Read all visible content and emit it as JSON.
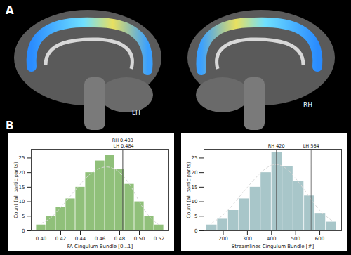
{
  "figure": {
    "panel_a": {
      "label": "A",
      "hemispheres": [
        "LH",
        "RH"
      ]
    },
    "panel_b": {
      "label": "B"
    }
  },
  "chart_data": [
    {
      "type": "histogram",
      "x_label": "FA Cingulum Bundle [0...1]",
      "y_label": "Count (all participants)",
      "bins": [
        0.395,
        0.405,
        0.415,
        0.425,
        0.435,
        0.445,
        0.455,
        0.465,
        0.475,
        0.485,
        0.495,
        0.505,
        0.515,
        0.525
      ],
      "values": [
        2,
        5,
        8,
        11,
        15,
        20,
        24,
        26,
        21,
        16,
        10,
        5,
        2
      ],
      "color": "#90c07a",
      "density_curve": {
        "x": [
          0.4,
          0.41,
          0.42,
          0.43,
          0.44,
          0.45,
          0.46,
          0.47,
          0.48,
          0.49,
          0.5,
          0.51,
          0.52
        ],
        "values": [
          2.5,
          4.5,
          8,
          12,
          16,
          19.5,
          21.5,
          21.8,
          20,
          16,
          10,
          5,
          2
        ],
        "line_style": "dashed"
      },
      "annotations": [
        {
          "x": 0.483,
          "label": "RH 0.483"
        },
        {
          "x": 0.484,
          "label": "LH 0.484"
        }
      ],
      "xlim": [
        0.39,
        0.53
      ],
      "xticks": [
        {
          "value": 0.4,
          "label": "0.40"
        },
        0.42,
        0.44,
        0.46,
        0.48,
        {
          "value": 0.5,
          "label": "0.50"
        },
        0.52
      ],
      "ylim": [
        0,
        28
      ],
      "yticks": [
        0,
        5,
        10,
        15,
        20,
        25
      ],
      "grid": false
    },
    {
      "type": "histogram",
      "x_label": "Streamlines Cingulum Bundle [#]",
      "y_label": "Count (all participants)",
      "bins": [
        130,
        175,
        220,
        265,
        310,
        355,
        400,
        445,
        490,
        535,
        580,
        625,
        670
      ],
      "values": [
        2,
        4,
        7,
        11,
        15,
        20,
        27,
        22,
        17,
        12,
        6,
        3
      ],
      "color": "#a8c6c9",
      "density_curve": {
        "x": [
          150,
          200,
          250,
          300,
          350,
          400,
          450,
          500,
          550,
          600,
          650
        ],
        "values": [
          2.5,
          5.5,
          10,
          15,
          19.5,
          22.5,
          22,
          18,
          12.5,
          7,
          3.5
        ],
        "line_style": "dashed"
      },
      "annotations": [
        {
          "x": 420,
          "label": "RH 420"
        },
        {
          "x": 564,
          "label": "LH 564"
        }
      ],
      "xlim": [
        120,
        690
      ],
      "xticks": [
        200,
        300,
        400,
        500,
        600
      ],
      "ylim": [
        0,
        28
      ],
      "yticks": [
        0,
        5,
        10,
        15,
        20,
        25
      ],
      "grid": false
    }
  ]
}
